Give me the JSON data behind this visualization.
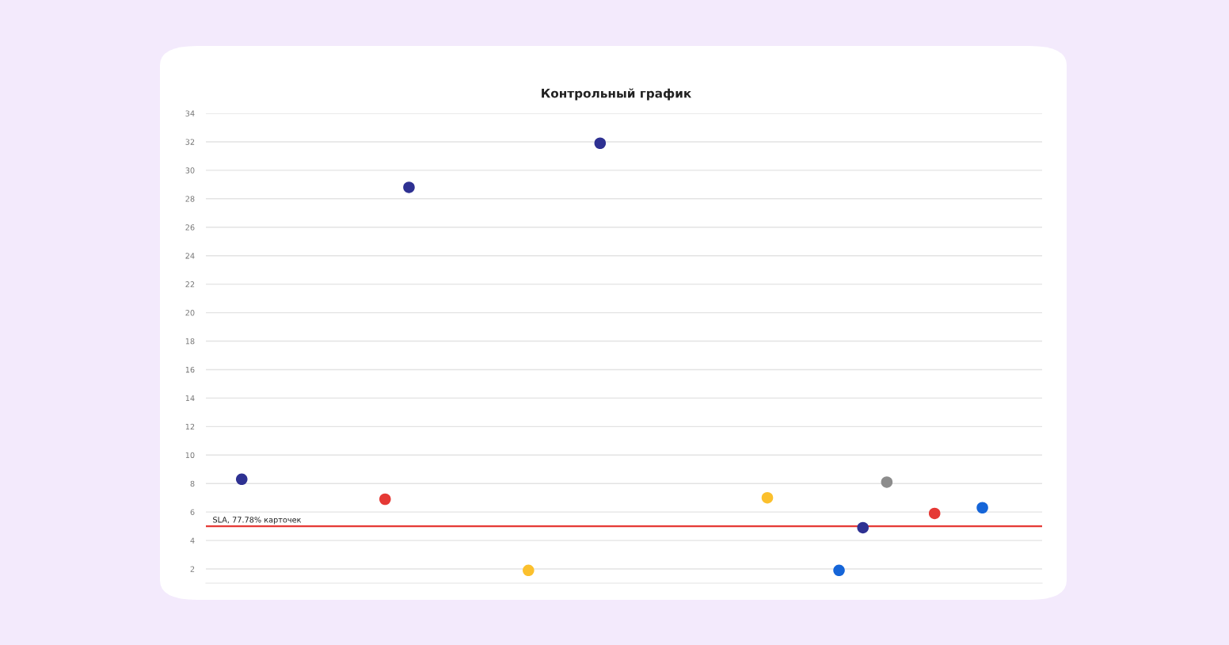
{
  "chart_data": {
    "type": "scatter",
    "title": "Контрольный график",
    "categories": [
      null,
      null,
      null,
      null,
      null,
      null,
      null,
      null,
      null,
      null,
      null,
      null,
      null,
      null,
      null,
      null,
      null,
      null,
      null,
      null,
      null,
      null,
      null,
      null,
      null,
      null,
      null,
      null,
      null,
      null,
      null,
      null,
      null,
      null,
      null
    ],
    "values": [
      null,
      8.3,
      null,
      null,
      null,
      null,
      null,
      6.9,
      28.8,
      null,
      null,
      null,
      null,
      1.9,
      null,
      null,
      31.9,
      null,
      null,
      null,
      null,
      null,
      null,
      7.0,
      null,
      null,
      1.9,
      4.9,
      8.1,
      null,
      5.9,
      null,
      6.3,
      null,
      null
    ],
    "colors": [
      "#2e3192",
      "#2e3192",
      "#2e3192",
      "#2e3192",
      "#2e3192",
      "#2e3192",
      "#2e3192",
      "#e53935",
      "#2e3192",
      "#2e3192",
      "#2e3192",
      "#2e3192",
      "#2e3192",
      "#fbc02d",
      "#2e3192",
      "#2e3192",
      "#2e3192",
      "#2e3192",
      "#2e3192",
      "#2e3192",
      "#2e3192",
      "#2e3192",
      "#2e3192",
      "#fbc02d",
      "#2e3192",
      "#2e3192",
      "#1565d8",
      "#2e3192",
      "#8c8c8c",
      "#2e3192",
      "#e53935",
      "#2e3192",
      "#1565d8",
      "#2e3192",
      "#2e3192"
    ],
    "ylim": [
      1,
      34
    ],
    "yticks": [
      2,
      4,
      6,
      8,
      10,
      12,
      14,
      16,
      18,
      20,
      22,
      24,
      26,
      28,
      30,
      32,
      34
    ],
    "grid": "y",
    "tick_labels": "y",
    "marker": "circle",
    "ref_lines": [
      {
        "axis": "y",
        "value": 5,
        "label": "SLA, 77.78% карточек",
        "color": "#e53935",
        "line_style": "solid"
      }
    ]
  }
}
